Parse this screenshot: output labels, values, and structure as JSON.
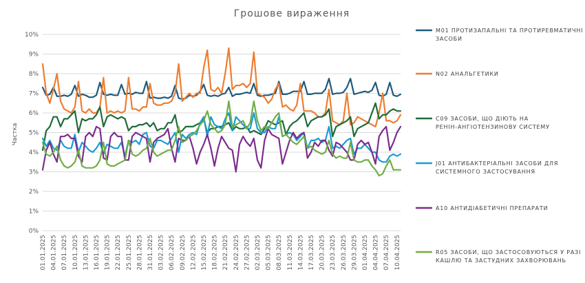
{
  "chart_data": {
    "type": "line",
    "title": "Грошове вираження",
    "xlabel": "",
    "ylabel": "Частка",
    "ylim": [
      0,
      10
    ],
    "yticks": [
      "0%",
      "1%",
      "2%",
      "3%",
      "4%",
      "5%",
      "6%",
      "7%",
      "8%",
      "9%",
      "10%"
    ],
    "grid": true,
    "legend_position": "right",
    "x": [
      "01.01.2025",
      "02.01.2025",
      "03.01.2025",
      "04.01.2025",
      "05.01.2025",
      "06.01.2025",
      "07.01.2025",
      "08.01.2025",
      "09.01.2025",
      "10.01.2025",
      "11.01.2025",
      "12.01.2025",
      "13.01.2025",
      "14.01.2025",
      "15.01.2025",
      "16.01.2025",
      "17.01.2025",
      "18.01.2025",
      "19.01.2025",
      "20.01.2025",
      "21.01.2025",
      "22.01.2025",
      "23.01.2025",
      "24.01.2025",
      "25.01.2025",
      "26.01.2025",
      "27.01.2025",
      "28.01.2025",
      "29.01.2025",
      "30.01.2025",
      "31.01.2025",
      "01.02.2025",
      "02.02.2025",
      "03.02.2025",
      "04.02.2025",
      "05.02.2025",
      "06.02.2025",
      "07.02.2025",
      "08.02.2025",
      "09.02.2025",
      "10.02.2025",
      "11.02.2025",
      "12.02.2025",
      "13.02.2025",
      "14.02.2025",
      "15.02.2025",
      "16.02.2025",
      "17.02.2025",
      "18.02.2025",
      "19.02.2025",
      "20.02.2025",
      "21.02.2025",
      "22.02.2025",
      "23.02.2025",
      "24.02.2025",
      "25.02.2025",
      "26.02.2025",
      "27.02.2025",
      "28.02.2025",
      "01.03.2025",
      "02.03.2025",
      "03.03.2025",
      "04.03.2025",
      "05.03.2025",
      "06.03.2025",
      "07.03.2025",
      "08.03.2025",
      "09.03.2025",
      "10.03.2025",
      "11.03.2025",
      "12.03.2025",
      "13.03.2025",
      "14.03.2025",
      "15.03.2025",
      "16.03.2025",
      "17.03.2025",
      "18.03.2025",
      "19.03.2025",
      "20.03.2025",
      "21.03.2025",
      "22.03.2025",
      "23.03.2025",
      "24.03.2025",
      "25.03.2025",
      "26.03.2025",
      "27.03.2025",
      "28.03.2025",
      "29.03.2025",
      "30.03.2025",
      "31.03.2025",
      "01.04.2025",
      "02.04.2025",
      "03.04.2025",
      "04.04.2025",
      "05.04.2025",
      "06.04.2025",
      "07.04.2025",
      "08.04.2025",
      "09.04.2025",
      "10.04.2025",
      "11.04.2025"
    ],
    "x_tick_labels": [
      "01.01.2025",
      "04.01.2025",
      "07.01.2025",
      "10.01.2025",
      "13.01.2025",
      "16.01.2025",
      "19.01.2025",
      "22.01.2025",
      "25.01.2025",
      "28.01.2025",
      "31.01.2025",
      "03.02.2025",
      "06.02.2025",
      "09.02.2025",
      "12.02.2025",
      "15.02.2025",
      "18.02.2025",
      "21.02.2025",
      "24.02.2025",
      "27.02.2025",
      "02.03.2025",
      "05.03.2025",
      "08.03.2025",
      "11.03.2025",
      "14.03.2025",
      "17.03.2025",
      "20.03.2025",
      "23.03.2025",
      "26.03.2025",
      "29.03.2025",
      "01.04.2025",
      "04.04.2025",
      "07.04.2025",
      "10.04.2025"
    ],
    "series": [
      {
        "name": "M01 ПРОТИЗАПАЛЬНІ ТА ПРОТИРЕВМАТИЧНІ ЗАСОБИ",
        "color": "#1f5a7a",
        "values": [
          7.3,
          6.9,
          6.95,
          7.3,
          6.85,
          6.85,
          6.9,
          6.85,
          6.95,
          7.4,
          6.85,
          6.95,
          6.9,
          6.8,
          6.8,
          6.9,
          7.55,
          6.95,
          6.9,
          6.95,
          6.9,
          6.9,
          7.45,
          6.95,
          7.0,
          6.95,
          7.05,
          7.0,
          7.0,
          7.6,
          6.75,
          6.8,
          6.75,
          6.75,
          6.8,
          6.75,
          6.85,
          7.4,
          6.75,
          6.7,
          6.75,
          6.9,
          6.85,
          6.9,
          7.1,
          7.45,
          6.9,
          6.85,
          6.9,
          6.85,
          6.95,
          7.0,
          7.3,
          6.85,
          6.95,
          6.95,
          7.0,
          7.05,
          7.0,
          7.5,
          6.9,
          6.85,
          6.9,
          6.9,
          6.95,
          7.0,
          7.6,
          6.95,
          6.95,
          7.0,
          7.1,
          7.1,
          7.1,
          7.6,
          6.95,
          6.95,
          7.0,
          7.0,
          7.0,
          7.2,
          7.75,
          6.95,
          7.0,
          7.0,
          7.05,
          7.3,
          7.75,
          6.95,
          7.0,
          7.05,
          7.1,
          7.05,
          7.15,
          7.55,
          6.9,
          6.85,
          6.95,
          7.55,
          6.9,
          6.85,
          6.95
        ]
      },
      {
        "name": "N02 АНАЛЬГЕТИКИ",
        "color": "#ed7d31",
        "values": [
          8.5,
          7.0,
          6.5,
          7.2,
          8.0,
          6.6,
          6.2,
          6.1,
          6.0,
          6.3,
          7.6,
          6.1,
          6.0,
          6.2,
          6.0,
          6.0,
          6.3,
          7.8,
          6.0,
          6.1,
          6.0,
          6.1,
          6.0,
          6.1,
          7.8,
          6.2,
          6.2,
          6.1,
          6.3,
          6.3,
          7.5,
          6.5,
          6.4,
          6.4,
          6.5,
          6.5,
          6.6,
          7.0,
          8.5,
          6.6,
          6.8,
          7.0,
          6.8,
          7.0,
          7.0,
          8.3,
          9.2,
          7.2,
          7.1,
          7.3,
          7.0,
          8.0,
          9.3,
          7.2,
          7.4,
          7.4,
          7.5,
          7.3,
          7.5,
          9.1,
          7.0,
          6.9,
          6.8,
          6.5,
          6.7,
          7.2,
          7.5,
          6.3,
          6.4,
          6.2,
          6.1,
          6.4,
          7.5,
          6.1,
          6.1,
          6.1,
          6.0,
          5.8,
          5.8,
          6.0,
          7.2,
          5.6,
          5.5,
          5.4,
          5.6,
          7.0,
          5.4,
          5.5,
          5.8,
          5.7,
          5.6,
          5.5,
          5.4,
          5.3,
          6.0,
          7.0,
          5.6,
          5.6,
          5.5,
          5.6,
          5.9
        ]
      },
      {
        "name": "C09 ЗАСОБИ, ЩО ДІЮТЬ НА РЕНІН-АНГІОТЕНЗИНОВУ СИСТЕМУ",
        "color": "#1e6b38",
        "values": [
          4.1,
          5.1,
          5.3,
          5.8,
          5.8,
          5.3,
          5.7,
          5.7,
          5.9,
          6.1,
          5.0,
          5.7,
          5.6,
          5.7,
          5.7,
          5.9,
          6.3,
          5.3,
          5.8,
          5.9,
          5.8,
          5.7,
          5.8,
          5.7,
          5.1,
          5.3,
          5.3,
          5.4,
          5.4,
          5.5,
          5.3,
          5.5,
          5.1,
          5.2,
          5.2,
          5.5,
          5.5,
          5.9,
          5.0,
          5.1,
          5.3,
          5.3,
          5.3,
          5.4,
          5.5,
          5.7,
          5.0,
          5.2,
          5.2,
          5.3,
          5.3,
          5.4,
          5.5,
          5.1,
          5.3,
          5.2,
          5.2,
          5.3,
          5.0,
          5.1,
          5.0,
          4.9,
          5.2,
          5.6,
          5.5,
          5.4,
          5.5,
          5.6,
          4.9,
          5.3,
          5.5,
          5.6,
          5.8,
          6.0,
          5.3,
          5.6,
          5.7,
          5.8,
          5.8,
          5.9,
          6.2,
          4.8,
          5.3,
          5.4,
          5.5,
          5.6,
          5.8,
          4.8,
          5.2,
          5.3,
          5.4,
          5.5,
          6.0,
          6.5,
          5.7,
          5.9,
          5.9,
          6.1,
          6.2,
          6.1,
          6.1
        ]
      },
      {
        "name": "J01 АНТИБАКТЕРІАЛЬНІ ЗАСОБИ ДЛЯ СИСТЕМНОГО ЗАСТОСУВАННЯ",
        "color": "#1a9bd4",
        "values": [
          4.7,
          4.3,
          4.6,
          4.2,
          4.1,
          4.6,
          4.3,
          4.2,
          4.2,
          4.9,
          4.0,
          4.5,
          4.3,
          4.1,
          4.0,
          4.2,
          4.5,
          3.9,
          4.4,
          4.3,
          4.2,
          4.2,
          4.5,
          3.8,
          4.6,
          4.5,
          4.6,
          4.4,
          4.9,
          5.0,
          4.3,
          4.2,
          4.6,
          4.6,
          4.5,
          4.4,
          4.7,
          5.0,
          4.0,
          4.9,
          4.7,
          4.9,
          5.0,
          4.9,
          5.5,
          5.8,
          4.8,
          5.8,
          5.4,
          5.3,
          5.2,
          5.7,
          6.0,
          5.1,
          5.8,
          5.6,
          5.4,
          5.2,
          5.2,
          6.0,
          5.2,
          5.0,
          5.0,
          5.3,
          5.2,
          5.2,
          5.8,
          4.8,
          4.9,
          5.0,
          4.9,
          4.6,
          4.8,
          5.0,
          4.2,
          4.6,
          4.6,
          4.7,
          4.5,
          4.6,
          5.3,
          4.2,
          4.3,
          4.2,
          4.4,
          4.6,
          4.7,
          3.9,
          4.2,
          4.2,
          4.4,
          4.2,
          4.0,
          4.0,
          3.6,
          3.5,
          3.5,
          3.8,
          3.9,
          3.8,
          3.9
        ]
      },
      {
        "name": "A10 АНТИДІАБЕТИЧНІ ПРЕПАРАТИ",
        "color": "#7b2c8e",
        "values": [
          3.1,
          4.1,
          4.5,
          3.9,
          3.5,
          4.8,
          4.8,
          4.9,
          4.7,
          4.7,
          3.8,
          3.5,
          4.8,
          5.0,
          4.8,
          5.3,
          5.2,
          3.7,
          3.6,
          4.8,
          5.0,
          4.8,
          4.8,
          3.6,
          3.6,
          4.8,
          5.0,
          4.9,
          4.8,
          4.7,
          3.5,
          4.5,
          4.7,
          4.8,
          4.9,
          5.2,
          4.2,
          3.5,
          4.7,
          4.6,
          4.6,
          4.8,
          4.2,
          3.4,
          4.0,
          4.4,
          4.9,
          4.2,
          3.3,
          4.2,
          4.8,
          4.5,
          4.2,
          4.1,
          3.0,
          4.4,
          4.8,
          4.5,
          4.3,
          4.7,
          3.6,
          3.2,
          4.6,
          5.2,
          4.9,
          4.8,
          4.7,
          3.4,
          4.0,
          4.6,
          5.0,
          4.7,
          4.9,
          5.0,
          3.7,
          4.0,
          4.5,
          4.3,
          4.6,
          4.6,
          4.1,
          3.8,
          4.5,
          4.4,
          4.2,
          4.0,
          3.6,
          3.6,
          4.4,
          4.6,
          4.4,
          4.5,
          4.0,
          3.4,
          4.8,
          5.1,
          5.3,
          4.1,
          4.5,
          5.0,
          5.3
        ]
      },
      {
        "name": "R05 ЗАСОБИ, ЩО ЗАСТОСОВУЮТЬСЯ У РАЗІ КАШЛЮ ТА ЗАСТУДНИХ ЗАХВОРЮВАНЬ",
        "color": "#70ad47",
        "values": [
          4.5,
          3.9,
          3.8,
          4.0,
          4.3,
          3.6,
          3.3,
          3.2,
          3.3,
          3.5,
          4.1,
          3.3,
          3.2,
          3.2,
          3.2,
          3.3,
          3.6,
          4.5,
          3.4,
          3.3,
          3.3,
          3.4,
          3.5,
          3.6,
          4.6,
          3.9,
          3.8,
          3.9,
          4.1,
          4.2,
          4.7,
          4.0,
          3.8,
          3.9,
          4.0,
          4.1,
          4.1,
          4.6,
          5.3,
          4.5,
          4.6,
          4.8,
          4.9,
          5.1,
          5.4,
          5.6,
          6.1,
          5.4,
          5.2,
          5.0,
          5.1,
          5.4,
          6.6,
          5.3,
          5.4,
          5.5,
          5.6,
          5.2,
          5.5,
          6.6,
          5.6,
          5.1,
          5.3,
          5.2,
          5.5,
          5.8,
          6.0,
          4.8,
          4.9,
          4.7,
          4.5,
          4.4,
          4.6,
          4.8,
          4.2,
          4.3,
          4.1,
          4.0,
          3.9,
          4.0,
          4.6,
          3.9,
          3.7,
          3.8,
          3.7,
          3.7,
          4.5,
          3.6,
          3.5,
          3.5,
          3.6,
          3.6,
          3.3,
          3.1,
          2.8,
          2.9,
          3.3,
          3.6,
          3.1,
          3.1,
          3.1
        ]
      }
    ]
  }
}
